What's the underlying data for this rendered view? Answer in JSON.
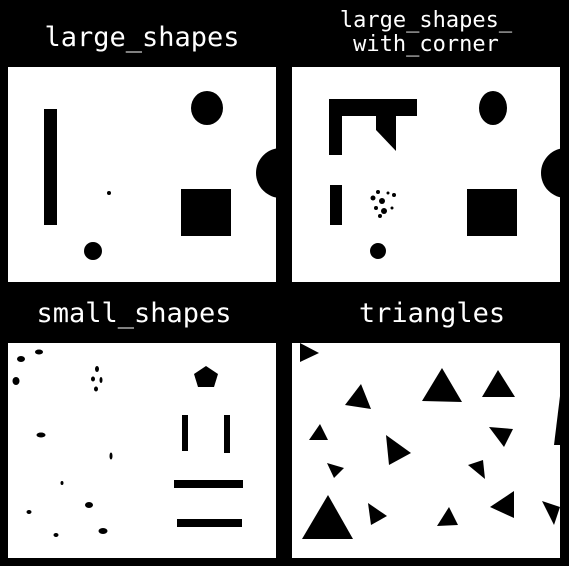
{
  "panels": [
    {
      "id": "large_shapes",
      "title": "large_shapes"
    },
    {
      "id": "large_shapes_with_corner",
      "title": "large_shapes_\nwith_corner"
    },
    {
      "id": "small_shapes",
      "title": "small_shapes"
    },
    {
      "id": "triangles",
      "title": "triangles"
    }
  ],
  "colors": {
    "background": "#000000",
    "canvas": "#ffffff",
    "shape": "#000000",
    "title": "#ffffff"
  }
}
